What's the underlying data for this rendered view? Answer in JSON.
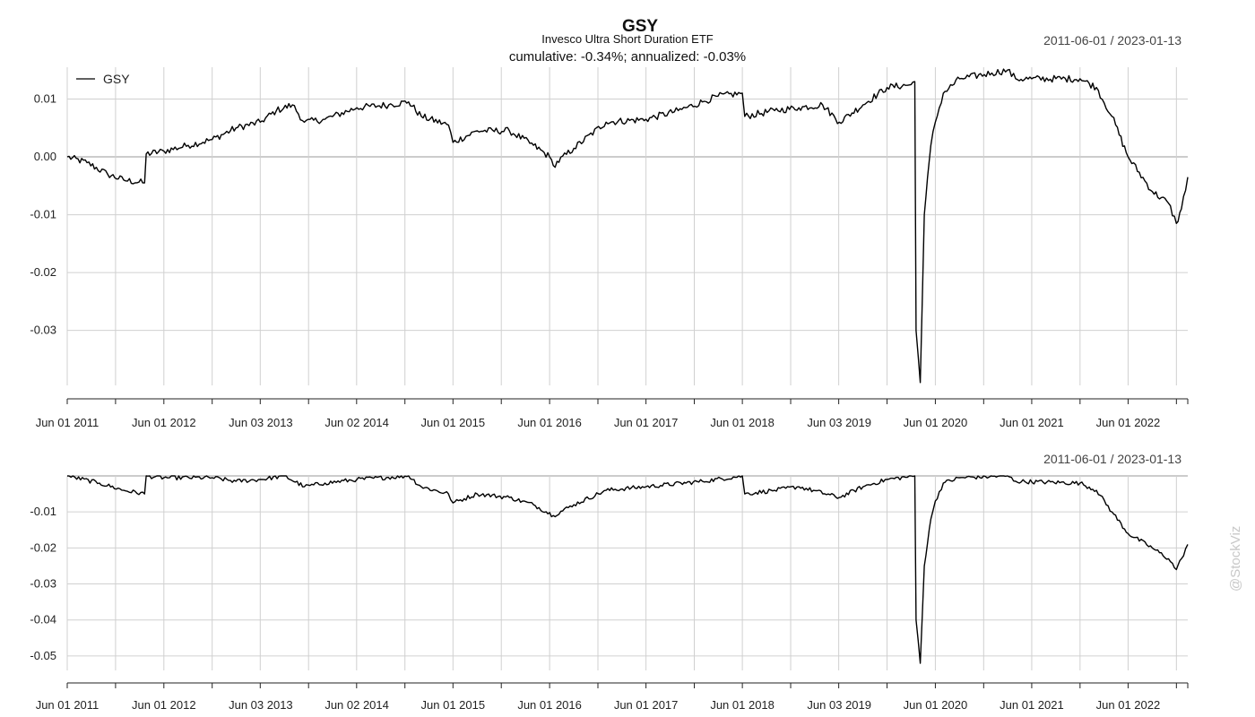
{
  "chart_data": [
    {
      "type": "line",
      "panel": "returns",
      "title": "GSY",
      "subtitle": "Invesco Ultra Short Duration ETF",
      "performance_text": "cumulative: -0.34%; annualized: -0.03%",
      "date_range": "2011-06-01 / 2023-01-13",
      "legend": {
        "entries": [
          "GSY"
        ],
        "placement": "top-left"
      },
      "x_tick_labels": [
        "Jun 01 2011",
        "Jun 01 2012",
        "Jun 03 2013",
        "Jun 02 2014",
        "Jun 01 2015",
        "Jun 01 2016",
        "Jun 01 2017",
        "Jun 01 2018",
        "Jun 03 2019",
        "Jun 01 2020",
        "Jun 01 2021",
        "Jun 01 2022"
      ],
      "x_tick_dates": [
        "2011-06-01",
        "2012-06-01",
        "2013-06-03",
        "2014-06-02",
        "2015-06-01",
        "2016-06-01",
        "2017-06-01",
        "2018-06-01",
        "2019-06-03",
        "2020-06-01",
        "2021-06-01",
        "2022-06-01"
      ],
      "xlim": [
        "2011-06-01",
        "2023-01-13"
      ],
      "y_ticks": [
        0.01,
        0.0,
        -0.01,
        -0.02,
        -0.03
      ],
      "y_tick_labels": [
        "0.01",
        "0.00",
        "-0.01",
        "-0.02",
        "-0.03"
      ],
      "ylim": [
        -0.0395,
        0.0155
      ],
      "grid": true,
      "series": [
        {
          "name": "GSY",
          "points": [
            [
              "2011-06-01",
              0.0
            ],
            [
              "2011-08-15",
              -0.001
            ],
            [
              "2011-11-01",
              -0.003
            ],
            [
              "2012-01-01",
              -0.004
            ],
            [
              "2012-03-20",
              -0.0045
            ],
            [
              "2012-03-26",
              0.0005
            ],
            [
              "2012-06-01",
              0.001
            ],
            [
              "2012-09-01",
              0.002
            ],
            [
              "2012-12-01",
              0.003
            ],
            [
              "2013-03-01",
              0.005
            ],
            [
              "2013-06-01",
              0.006
            ],
            [
              "2013-08-01",
              0.008
            ],
            [
              "2013-10-01",
              0.009
            ],
            [
              "2013-11-15",
              0.006
            ],
            [
              "2014-02-01",
              0.0065
            ],
            [
              "2014-06-02",
              0.0085
            ],
            [
              "2014-10-01",
              0.009
            ],
            [
              "2014-12-15",
              0.0095
            ],
            [
              "2015-02-01",
              0.007
            ],
            [
              "2015-05-15",
              0.0055
            ],
            [
              "2015-06-01",
              0.0025
            ],
            [
              "2015-09-01",
              0.0045
            ],
            [
              "2016-01-01",
              0.0045
            ],
            [
              "2016-04-01",
              0.002
            ],
            [
              "2016-06-01",
              0.0
            ],
            [
              "2016-06-15",
              -0.0015
            ],
            [
              "2016-09-01",
              0.0015
            ],
            [
              "2017-01-01",
              0.006
            ],
            [
              "2017-06-01",
              0.0065
            ],
            [
              "2017-10-01",
              0.008
            ],
            [
              "2018-01-01",
              0.0095
            ],
            [
              "2018-03-01",
              0.0105
            ],
            [
              "2018-06-01",
              0.011
            ],
            [
              "2018-06-10",
              0.007
            ],
            [
              "2018-10-01",
              0.008
            ],
            [
              "2019-01-01",
              0.0085
            ],
            [
              "2019-04-01",
              0.009
            ],
            [
              "2019-06-03",
              0.006
            ],
            [
              "2019-09-01",
              0.009
            ],
            [
              "2019-12-01",
              0.012
            ],
            [
              "2020-03-01",
              0.0125
            ],
            [
              "2020-03-15",
              0.013
            ],
            [
              "2020-03-20",
              -0.03
            ],
            [
              "2020-04-05",
              -0.039
            ],
            [
              "2020-04-20",
              -0.01
            ],
            [
              "2020-05-15",
              0.002
            ],
            [
              "2020-06-01",
              0.006
            ],
            [
              "2020-07-01",
              0.011
            ],
            [
              "2020-09-01",
              0.0135
            ],
            [
              "2021-01-01",
              0.0145
            ],
            [
              "2021-03-01",
              0.015
            ],
            [
              "2021-04-01",
              0.0135
            ],
            [
              "2021-06-01",
              0.0135
            ],
            [
              "2021-12-01",
              0.0135
            ],
            [
              "2022-02-01",
              0.012
            ],
            [
              "2022-04-01",
              0.007
            ],
            [
              "2022-06-01",
              0.0
            ],
            [
              "2022-09-01",
              -0.006
            ],
            [
              "2022-11-01",
              -0.008
            ],
            [
              "2022-12-01",
              -0.0115
            ],
            [
              "2022-12-20",
              -0.009
            ],
            [
              "2023-01-13",
              -0.0035
            ]
          ]
        }
      ]
    },
    {
      "type": "line",
      "panel": "drawdown",
      "date_range": "2011-06-01 / 2023-01-13",
      "x_tick_labels": [
        "Jun 01 2011",
        "Jun 01 2012",
        "Jun 03 2013",
        "Jun 02 2014",
        "Jun 01 2015",
        "Jun 01 2016",
        "Jun 01 2017",
        "Jun 01 2018",
        "Jun 03 2019",
        "Jun 01 2020",
        "Jun 01 2021",
        "Jun 01 2022"
      ],
      "x_tick_dates": [
        "2011-06-01",
        "2012-06-01",
        "2013-06-03",
        "2014-06-02",
        "2015-06-01",
        "2016-06-01",
        "2017-06-01",
        "2018-06-01",
        "2019-06-03",
        "2020-06-01",
        "2021-06-01",
        "2022-06-01"
      ],
      "xlim": [
        "2011-06-01",
        "2023-01-13"
      ],
      "y_ticks": [
        -0.01,
        -0.02,
        -0.03,
        -0.04,
        -0.05
      ],
      "y_tick_labels": [
        "-0.01",
        "-0.02",
        "-0.03",
        "-0.04",
        "-0.05"
      ],
      "ylim": [
        -0.054,
        0.0
      ],
      "grid": true,
      "series": [
        {
          "name": "GSY",
          "points": [
            [
              "2011-06-01",
              0.0
            ],
            [
              "2011-10-01",
              -0.002
            ],
            [
              "2012-01-01",
              -0.004
            ],
            [
              "2012-03-20",
              -0.005
            ],
            [
              "2012-03-26",
              0.0
            ],
            [
              "2012-06-01",
              -0.0005
            ],
            [
              "2012-12-01",
              -0.0005
            ],
            [
              "2013-03-01",
              -0.0015
            ],
            [
              "2013-06-01",
              -0.001
            ],
            [
              "2013-09-01",
              0.0
            ],
            [
              "2013-11-15",
              -0.003
            ],
            [
              "2014-02-01",
              -0.002
            ],
            [
              "2014-06-02",
              -0.001
            ],
            [
              "2014-12-15",
              0.0
            ],
            [
              "2015-02-01",
              -0.003
            ],
            [
              "2015-05-15",
              -0.005
            ],
            [
              "2015-06-01",
              -0.0075
            ],
            [
              "2015-09-01",
              -0.005
            ],
            [
              "2016-01-01",
              -0.006
            ],
            [
              "2016-04-01",
              -0.008
            ],
            [
              "2016-06-15",
              -0.011
            ],
            [
              "2016-09-01",
              -0.008
            ],
            [
              "2017-01-01",
              -0.004
            ],
            [
              "2017-06-01",
              -0.003
            ],
            [
              "2018-01-01",
              -0.0015
            ],
            [
              "2018-06-01",
              0.0
            ],
            [
              "2018-06-10",
              -0.005
            ],
            [
              "2018-10-01",
              -0.004
            ],
            [
              "2019-01-01",
              -0.003
            ],
            [
              "2019-06-03",
              -0.006
            ],
            [
              "2019-09-01",
              -0.003
            ],
            [
              "2019-12-01",
              -0.001
            ],
            [
              "2020-03-15",
              0.0
            ],
            [
              "2020-03-20",
              -0.04
            ],
            [
              "2020-04-05",
              -0.052
            ],
            [
              "2020-04-20",
              -0.025
            ],
            [
              "2020-05-15",
              -0.012
            ],
            [
              "2020-06-01",
              -0.007
            ],
            [
              "2020-07-01",
              -0.002
            ],
            [
              "2020-09-01",
              -0.0005
            ],
            [
              "2021-03-01",
              0.0
            ],
            [
              "2021-04-01",
              -0.0015
            ],
            [
              "2021-12-01",
              -0.002
            ],
            [
              "2022-02-01",
              -0.004
            ],
            [
              "2022-04-01",
              -0.01
            ],
            [
              "2022-06-01",
              -0.016
            ],
            [
              "2022-09-01",
              -0.02
            ],
            [
              "2022-11-01",
              -0.023
            ],
            [
              "2022-12-01",
              -0.026
            ],
            [
              "2022-12-20",
              -0.023
            ],
            [
              "2023-01-13",
              -0.019
            ]
          ]
        }
      ]
    }
  ],
  "watermark": "@StockViz"
}
